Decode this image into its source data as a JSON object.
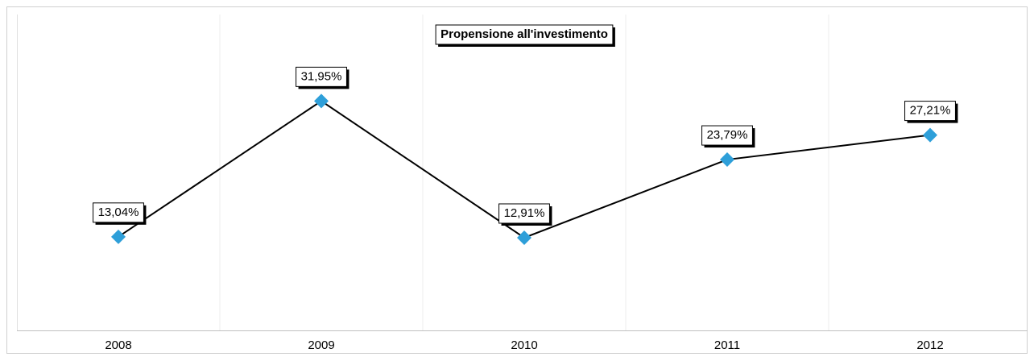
{
  "chart_data": {
    "type": "line",
    "title": "Propensione all'investimento",
    "categories": [
      "2008",
      "2009",
      "2010",
      "2011",
      "2012"
    ],
    "series": [
      {
        "name": "Propensione all'investimento",
        "color": "#000000",
        "marker_color": "#2e9fd9",
        "values": [
          13.04,
          31.95,
          12.91,
          23.79,
          27.21
        ],
        "value_labels": [
          "13,04%",
          "31,95%",
          "12,91%",
          "23,79%",
          "27,21%"
        ]
      }
    ],
    "ylim": [
      0,
      44
    ]
  }
}
